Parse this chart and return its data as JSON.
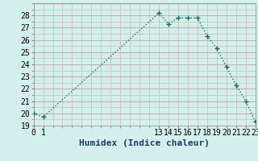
{
  "x": [
    0,
    1,
    13,
    14,
    15,
    16,
    17,
    18,
    19,
    20,
    21,
    22,
    23
  ],
  "y": [
    20.0,
    19.7,
    28.2,
    27.3,
    27.8,
    27.8,
    27.8,
    26.3,
    25.3,
    23.8,
    22.3,
    21.0,
    19.3
  ],
  "line_color": "#1a6b5a",
  "marker": "+",
  "marker_size": 4,
  "bg_color": "#d4f0ec",
  "grid_color": "#c0dbd7",
  "grid_color_pink": "#d4c8c8",
  "xlabel": "Humidex (Indice chaleur)",
  "xlim": [
    0,
    23
  ],
  "ylim": [
    19,
    29
  ],
  "yticks": [
    19,
    20,
    21,
    22,
    23,
    24,
    25,
    26,
    27,
    28
  ],
  "xticks": [
    0,
    1,
    13,
    14,
    15,
    16,
    17,
    18,
    19,
    20,
    21,
    22,
    23
  ],
  "xlabel_fontsize": 8,
  "tick_fontsize": 7
}
